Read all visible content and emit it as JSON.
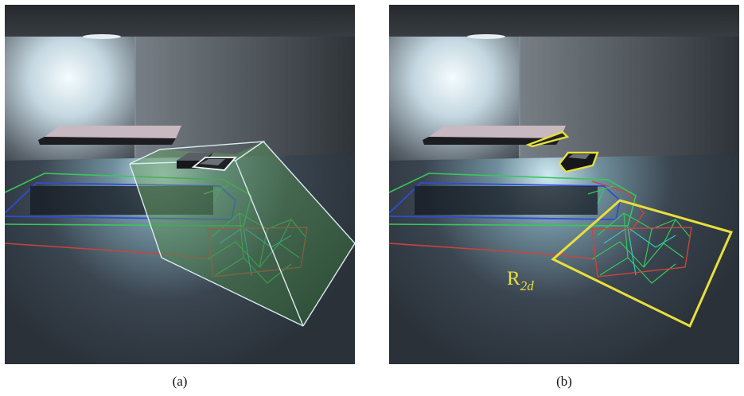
{
  "figure": {
    "panels": [
      {
        "id": "a",
        "caption": "(a)"
      },
      {
        "id": "b",
        "caption": "(b)"
      }
    ],
    "annotation": {
      "label_main": "R",
      "label_subscript": "2d",
      "color": "#e8df3c"
    }
  },
  "colors": {
    "wall_dark": "#2c3035",
    "wall_mid": "#4a515a",
    "floor": "#323a44",
    "glow": "#cfe9f3",
    "frustum_fill": "#3f7a3a",
    "frustum_edge": "#d9ecef",
    "red_edge": "#c8453c",
    "green_edge": "#37c85a",
    "blue_edge": "#2f4cd6",
    "cyan_edge": "#31d1c1",
    "yellow_box": "#e8df3c"
  }
}
